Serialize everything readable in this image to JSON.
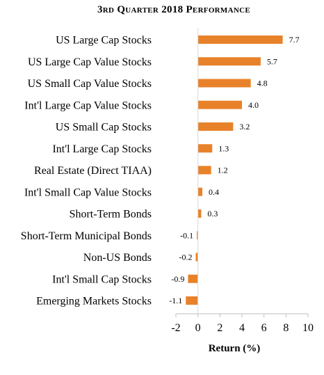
{
  "chart_data": {
    "type": "bar",
    "orientation": "horizontal",
    "title": "3rd Quarter 2018 Performance",
    "xlabel": "Return (%)",
    "ylabel": "",
    "xlim": [
      -2,
      10
    ],
    "xticks": [
      -2,
      0,
      2,
      4,
      6,
      8,
      10
    ],
    "grid": false,
    "legend": "none",
    "bar_color": "#E8822A",
    "categories": [
      "US Large Cap Stocks",
      "US Large Cap Value Stocks",
      "US Small Cap Value Stocks",
      "Int'l Large Cap Value Stocks",
      "US Small Cap Stocks",
      "Int'l Large Cap Stocks",
      "Real Estate (Direct TIAA)",
      "Int'l Small Cap Value Stocks",
      "Short-Term Bonds",
      "Short-Term Municipal Bonds",
      "Non-US Bonds",
      "Int'l Small Cap Stocks",
      "Emerging Markets Stocks"
    ],
    "values": [
      7.7,
      5.7,
      4.8,
      4.0,
      3.2,
      1.3,
      1.2,
      0.4,
      0.3,
      -0.1,
      -0.2,
      -0.9,
      -1.1
    ],
    "value_labels": [
      "7.7",
      "5.7",
      "4.8",
      "4.0",
      "3.2",
      "1.3",
      "1.2",
      "0.4",
      "0.3",
      "-0.1",
      "-0.2",
      "-0.9",
      "-1.1"
    ]
  }
}
